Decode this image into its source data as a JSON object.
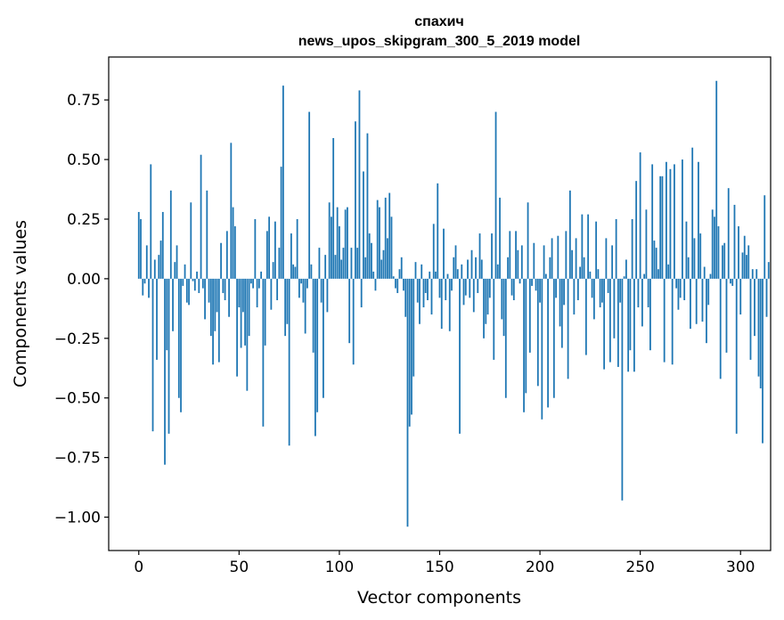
{
  "chart_data": {
    "type": "bar",
    "title": "спахич",
    "subtitle": "news_upos_skipgram_300_5_2019 model",
    "xlabel": "Vector components",
    "ylabel": "Components values",
    "xlim": [
      -15,
      315
    ],
    "ylim": [
      -1.14,
      0.93
    ],
    "x_ticks": [
      0,
      50,
      100,
      150,
      200,
      250,
      300
    ],
    "y_ticks": [
      -1.0,
      -0.75,
      -0.5,
      -0.25,
      0.0,
      0.25,
      0.5,
      0.75
    ],
    "x_tick_labels": [
      "0",
      "50",
      "100",
      "150",
      "200",
      "250",
      "300"
    ],
    "y_tick_labels": [
      "−1.00",
      "−0.75",
      "−0.50",
      "−0.25",
      "0.00",
      "0.25",
      "0.50",
      "0.75"
    ],
    "bar_color": "#1f77b4",
    "grid": false,
    "legend": "none",
    "values": [
      0.28,
      0.25,
      -0.07,
      -0.02,
      0.14,
      -0.08,
      0.48,
      -0.64,
      0.08,
      -0.34,
      0.1,
      0.16,
      0.28,
      -0.78,
      -0.3,
      -0.65,
      0.37,
      -0.22,
      0.07,
      0.14,
      -0.5,
      -0.56,
      -0.03,
      0.06,
      -0.1,
      -0.11,
      0.32,
      -0.01,
      -0.05,
      0.03,
      -0.06,
      0.52,
      -0.04,
      -0.17,
      0.37,
      -0.1,
      -0.24,
      -0.36,
      -0.22,
      -0.14,
      -0.35,
      0.15,
      -0.06,
      -0.09,
      0.2,
      -0.16,
      0.57,
      0.3,
      0.22,
      -0.41,
      -0.12,
      -0.29,
      -0.14,
      -0.28,
      -0.47,
      -0.24,
      -0.02,
      -0.04,
      0.25,
      -0.12,
      -0.04,
      0.03,
      -0.62,
      -0.28,
      0.2,
      0.26,
      -0.13,
      0.07,
      0.24,
      -0.09,
      0.13,
      0.47,
      0.81,
      -0.24,
      -0.19,
      -0.7,
      0.19,
      0.06,
      0.05,
      0.25,
      -0.08,
      -0.02,
      -0.1,
      -0.23,
      -0.04,
      0.7,
      0.06,
      -0.31,
      -0.66,
      -0.56,
      0.13,
      -0.1,
      -0.5,
      0.1,
      -0.14,
      0.32,
      0.26,
      0.59,
      0.1,
      0.3,
      0.22,
      0.08,
      0.13,
      0.29,
      0.3,
      -0.27,
      0.13,
      -0.36,
      0.66,
      0.13,
      0.79,
      -0.12,
      0.45,
      0.09,
      0.61,
      0.19,
      0.15,
      0.03,
      -0.05,
      0.33,
      0.3,
      0.08,
      0.12,
      0.34,
      0.17,
      0.36,
      0.26,
      0.01,
      -0.04,
      -0.06,
      0.04,
      0.09,
      -0.05,
      -0.16,
      -1.04,
      -0.62,
      -0.57,
      -0.41,
      0.07,
      -0.1,
      -0.19,
      0.06,
      -0.12,
      -0.06,
      -0.09,
      0.03,
      -0.15,
      0.23,
      0.03,
      0.4,
      -0.08,
      -0.21,
      0.21,
      -0.09,
      0.02,
      -0.22,
      -0.05,
      0.09,
      0.14,
      0.04,
      -0.65,
      0.06,
      -0.11,
      -0.07,
      0.08,
      -0.08,
      0.12,
      -0.14,
      0.09,
      -0.06,
      0.19,
      0.08,
      -0.25,
      -0.19,
      -0.15,
      -0.08,
      0.19,
      -0.34,
      0.7,
      0.06,
      0.34,
      -0.17,
      -0.24,
      -0.5,
      0.09,
      0.2,
      -0.07,
      -0.09,
      0.2,
      0.12,
      -0.02,
      0.14,
      -0.56,
      -0.48,
      0.32,
      -0.31,
      -0.03,
      0.15,
      -0.05,
      -0.45,
      -0.1,
      -0.59,
      0.14,
      0.02,
      -0.54,
      0.09,
      0.17,
      -0.5,
      -0.08,
      0.18,
      -0.2,
      -0.29,
      -0.11,
      0.2,
      -0.42,
      0.37,
      0.12,
      -0.15,
      0.17,
      -0.09,
      0.05,
      0.27,
      0.09,
      -0.32,
      0.27,
      0.03,
      -0.08,
      -0.17,
      0.24,
      0.04,
      -0.12,
      -0.1,
      -0.38,
      0.17,
      -0.06,
      -0.35,
      0.14,
      -0.25,
      0.25,
      -0.37,
      -0.1,
      -0.93,
      0.01,
      0.08,
      -0.39,
      -0.3,
      0.25,
      -0.39,
      0.41,
      -0.12,
      0.53,
      -0.2,
      0.02,
      0.29,
      -0.12,
      -0.3,
      0.48,
      0.16,
      0.13,
      0.04,
      0.43,
      0.43,
      -0.35,
      0.49,
      0.06,
      0.46,
      -0.36,
      0.48,
      -0.04,
      -0.13,
      -0.08,
      0.5,
      -0.09,
      0.24,
      0.09,
      -0.21,
      0.55,
      0.17,
      -0.19,
      0.49,
      0.19,
      -0.18,
      0.05,
      -0.27,
      -0.11,
      0.02,
      0.29,
      0.26,
      0.83,
      0.22,
      -0.42,
      0.14,
      0.15,
      -0.31,
      0.38,
      -0.02,
      -0.03,
      0.31,
      -0.65,
      0.22,
      -0.15,
      0.11,
      0.18,
      0.1,
      0.14,
      -0.34,
      0.04,
      -0.24,
      0.04,
      -0.41,
      -0.46,
      -0.69,
      0.35,
      -0.16,
      0.07
    ]
  }
}
